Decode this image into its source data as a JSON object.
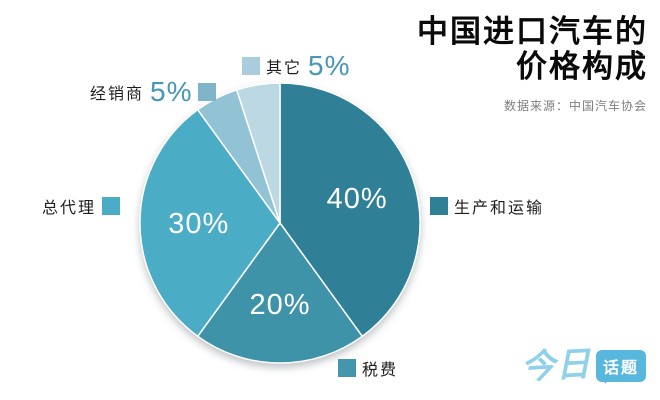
{
  "title": {
    "line1": "中国进口汽车的",
    "line2": "价格构成",
    "source": "数据来源：中国汽车协会"
  },
  "chart_data": {
    "type": "pie",
    "title": "中国进口汽车的价格构成",
    "source": "数据来源：中国汽车协会",
    "start_angle_deg": 0,
    "direction": "clockwise",
    "slices": [
      {
        "label": "生产和运输",
        "value": 40,
        "display": "40%",
        "color": "#2f7f97",
        "inside_label": true
      },
      {
        "label": "税费",
        "value": 20,
        "display": "20%",
        "color": "#3e93a9",
        "inside_label": true
      },
      {
        "label": "总代理",
        "value": 30,
        "display": "30%",
        "color": "#4bacc6",
        "inside_label": true
      },
      {
        "label": "经销商",
        "value": 5,
        "display": "5%",
        "color": "#92c3d4",
        "inside_label": false
      },
      {
        "label": "其它",
        "value": 5,
        "display": "5%",
        "color": "#bcd8e3",
        "inside_label": false
      }
    ]
  },
  "legend": {
    "items": [
      {
        "label": "其它",
        "value_text": "5%",
        "swatch": "#a9cddc"
      },
      {
        "label": "经销商",
        "value_text": "5%",
        "swatch": "#7fb5c9"
      },
      {
        "label": "总代理",
        "swatch": "#4bacc6"
      },
      {
        "label": "生产和运输",
        "swatch": "#2f7f97"
      },
      {
        "label": "税费",
        "swatch": "#4496ac"
      }
    ]
  },
  "logo": {
    "part1": "今日",
    "part2": "话题"
  }
}
